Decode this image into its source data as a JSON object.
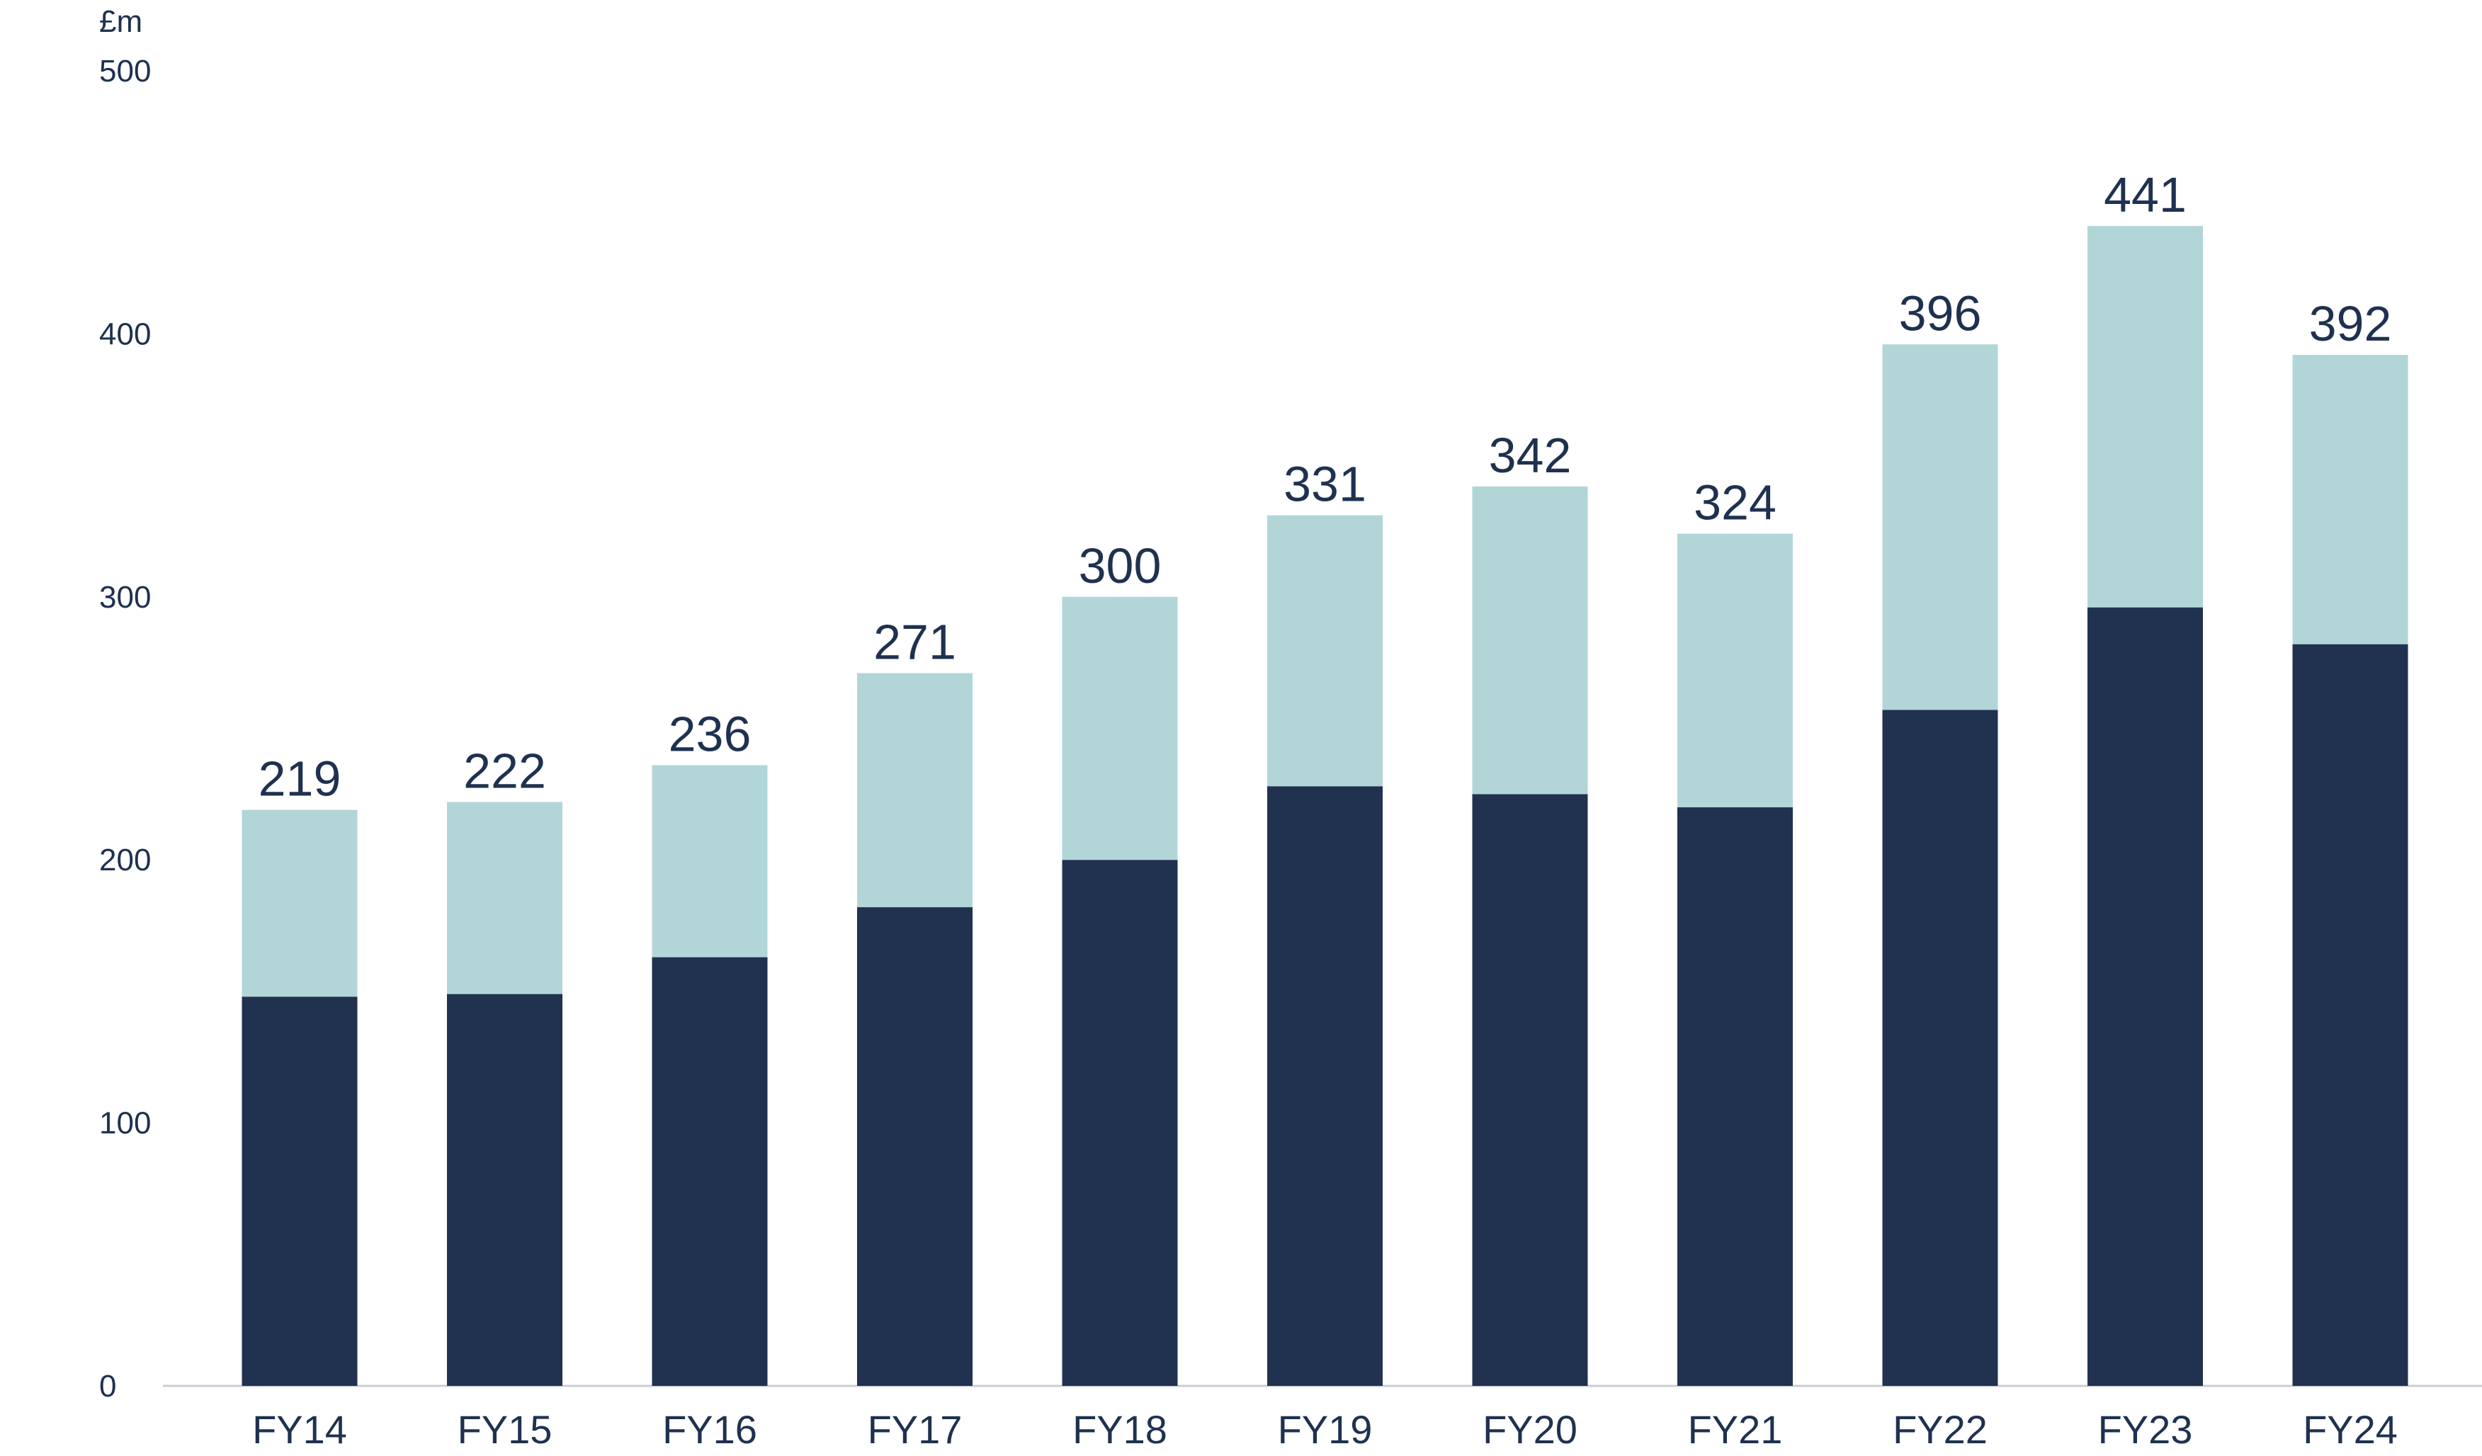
{
  "chart_data": {
    "type": "bar",
    "stacked": true,
    "unit_label": "£m",
    "categories": [
      "FY14",
      "FY15",
      "FY16",
      "FY17",
      "FY18",
      "FY19",
      "FY20",
      "FY21",
      "FY22",
      "FY23",
      "FY24"
    ],
    "totals": [
      219,
      222,
      236,
      271,
      300,
      331,
      342,
      324,
      396,
      441,
      392
    ],
    "series": [
      {
        "values": [
          148,
          149,
          163,
          182,
          200,
          228,
          225,
          220,
          257,
          296,
          282
        ],
        "color": "#213250"
      },
      {
        "values": [
          71,
          73,
          73,
          89,
          100,
          103,
          117,
          104,
          139,
          145,
          110
        ],
        "color": "#b2d6d8"
      }
    ],
    "ylim": [
      0,
      500
    ],
    "yticks": [
      "0",
      "100",
      "200",
      "300",
      "400",
      "500"
    ],
    "grid": false,
    "legend": "none",
    "xlabel": "",
    "ylabel": ""
  }
}
